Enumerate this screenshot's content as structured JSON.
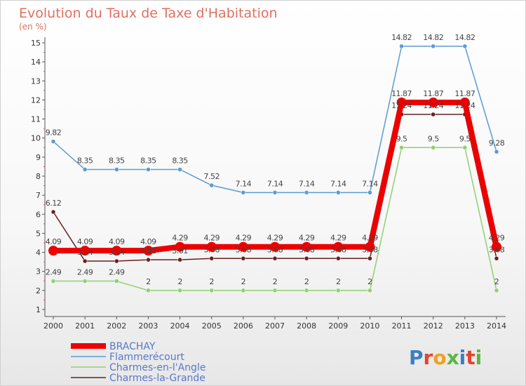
{
  "chart_data": {
    "type": "line",
    "title": "Evolution du Taux de Taxe d'Habitation",
    "subtitle": "(en %)",
    "x": [
      "2000",
      "2001",
      "2002",
      "2003",
      "2004",
      "2005",
      "2006",
      "2007",
      "2008",
      "2009",
      "2010",
      "2011",
      "2012",
      "2013",
      "2014"
    ],
    "yticks": [
      "1",
      "2",
      "3",
      "4",
      "5",
      "6",
      "7",
      "8",
      "9",
      "10",
      "11",
      "12",
      "13",
      "14",
      "15"
    ],
    "ylim": [
      1,
      15
    ],
    "grid": false,
    "legend_position": "bottom-left",
    "series": [
      {
        "name": "Flammerécourt",
        "color": "#5b9bd5",
        "values": [
          9.82,
          8.35,
          8.35,
          8.35,
          8.35,
          7.52,
          7.14,
          7.14,
          7.14,
          7.14,
          7.14,
          14.82,
          14.82,
          14.82,
          9.28
        ],
        "labels": [
          "9.82",
          "8.35",
          "8.35",
          "8.35",
          "8.35",
          "7.52",
          "7.14",
          "7.14",
          "7.14",
          "7.14",
          "7.14",
          "14.82",
          "14.82",
          "14.82",
          "9.28"
        ]
      },
      {
        "name": "Charmes-la-Grande",
        "color": "#6b1f1f",
        "values": [
          6.12,
          3.54,
          3.54,
          3.61,
          3.61,
          3.68,
          3.68,
          3.68,
          3.68,
          3.68,
          3.68,
          11.24,
          11.24,
          11.24,
          3.68
        ],
        "labels": [
          "6.12",
          "3.54",
          "3.54",
          "3.61",
          "3.61",
          "3.68",
          "3.68",
          "3.68",
          "3.68",
          "3.68",
          "3.68",
          "11.24",
          "11.24",
          "11.24",
          "3.68"
        ]
      },
      {
        "name": "Charmes-en-l'Angle",
        "color": "#90d070",
        "values": [
          2.49,
          2.49,
          2.49,
          2,
          2,
          2,
          2,
          2,
          2,
          2,
          2,
          9.5,
          9.5,
          9.5,
          2
        ],
        "labels": [
          "2.49",
          "2.49",
          "2.49",
          "2",
          "2",
          "2",
          "2",
          "2",
          "2",
          "2",
          "2",
          "9.5",
          "9.5",
          "9.5",
          "2"
        ]
      },
      {
        "name": "BRACHAY",
        "color": "#ee0000",
        "values": [
          4.09,
          4.09,
          4.09,
          4.09,
          4.29,
          4.29,
          4.29,
          4.29,
          4.29,
          4.29,
          4.29,
          11.87,
          11.87,
          11.87,
          4.29
        ],
        "labels": [
          "4.09",
          "4.09",
          "4.09",
          "4.09",
          "4.29",
          "4.29",
          "4.29",
          "4.29",
          "4.29",
          "4.29",
          "4.29",
          "11.87",
          "11.87",
          "11.87",
          "4.29"
        ]
      }
    ],
    "legend": [
      "BRACHAY",
      "Flammerécourt",
      "Charmes-en-l'Angle",
      "Charmes-la-Grande"
    ]
  },
  "brand": {
    "text": "Proxiti",
    "letter_colors": [
      "#3b7fc4",
      "#e8412c",
      "#f0a020",
      "#5cb840",
      "#3b7fc4",
      "#e8412c",
      "#5cb840"
    ]
  }
}
